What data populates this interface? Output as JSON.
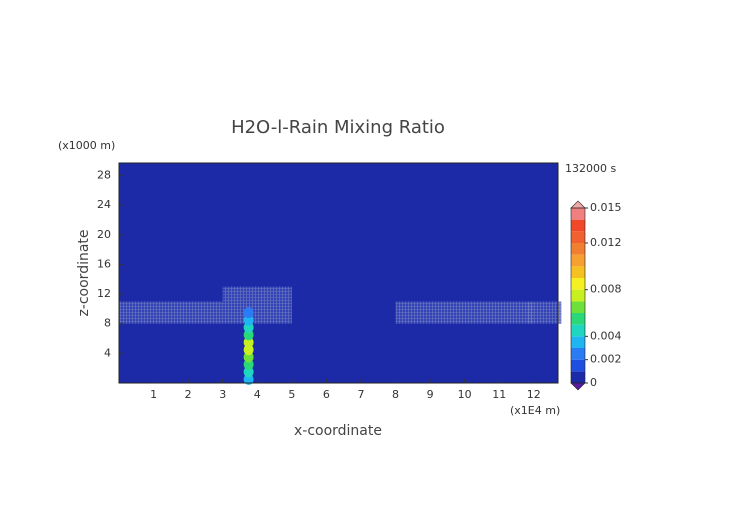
{
  "chart_data": {
    "type": "heatmap",
    "title": "H2O-l-Rain Mixing Ratio",
    "x_label": "x-coordinate",
    "y_label": "z-coordinate",
    "x_unit": "(x1E4 m)",
    "y_unit": "(x1000 m)",
    "time_label": "132000 s",
    "xlim": [
      0,
      12.7
    ],
    "ylim": [
      0,
      29.7
    ],
    "xticks": [
      1,
      2,
      3,
      4,
      5,
      6,
      7,
      8,
      9,
      10,
      11,
      12
    ],
    "yticks": [
      4,
      8,
      12,
      16,
      20,
      24,
      28
    ],
    "clim": [
      0,
      0.015
    ],
    "cticks": [
      0,
      0.002,
      0.004,
      0.008,
      0.012,
      0.015
    ],
    "levels": [
      0,
      0.001,
      0.002,
      0.003,
      0.004,
      0.005,
      0.006,
      0.007,
      0.008,
      0.009,
      0.01,
      0.011,
      0.012,
      0.013,
      0.014,
      0.015
    ],
    "colors": [
      "#1c2aa8",
      "#1f4fe0",
      "#2a7cf5",
      "#1fb5f0",
      "#1fd6c0",
      "#2ad87a",
      "#6ee03a",
      "#c8f020",
      "#f5f020",
      "#f5c020",
      "#f5a030",
      "#f08030",
      "#f06030",
      "#f04828",
      "#f08080"
    ],
    "under_color": "#5a1aa0",
    "over_color": "#f0a8a8",
    "rain": {
      "x": [
        3.75,
        3.75,
        3.75,
        3.75,
        3.75,
        3.75,
        3.75,
        3.75,
        3.75,
        3.75
      ],
      "y": [
        0.5,
        1.5,
        2.5,
        3.5,
        4.5,
        5.5,
        6.5,
        7.5,
        8.5,
        9.5
      ],
      "values": [
        0.003,
        0.004,
        0.005,
        0.006,
        0.0075,
        0.0075,
        0.005,
        0.004,
        0.003,
        0.002
      ]
    },
    "cloud": {
      "x": [
        0.5,
        1.5,
        2.5,
        3.5,
        4.5,
        0.5,
        1.5,
        2.5,
        3.5,
        4.5,
        0.5,
        1.5,
        2.5,
        3.5,
        4.5,
        3.5,
        4.5,
        3.5,
        4.5,
        8.5,
        9.5,
        10.5,
        11.5,
        12.3,
        8.5,
        9.5,
        10.5,
        11.5,
        12.3,
        8.5,
        9.5,
        10.5,
        11.5,
        12.3
      ],
      "y": [
        8.5,
        8.5,
        8.5,
        8.5,
        8.5,
        9.5,
        9.5,
        9.5,
        9.5,
        9.5,
        10.5,
        10.5,
        10.5,
        10.5,
        10.5,
        11.5,
        11.5,
        12.5,
        12.5,
        8.5,
        8.5,
        8.5,
        8.5,
        8.5,
        9.5,
        9.5,
        9.5,
        9.5,
        9.5,
        10.5,
        10.5,
        10.5,
        10.5,
        10.5
      ],
      "values": [
        0.0005,
        0.0005,
        0.0005,
        0.0005,
        0.0005,
        0.0005,
        0.0005,
        0.0005,
        0.0005,
        0.0005,
        0.0005,
        0.0005,
        0.0005,
        0.0005,
        0.0005,
        0.0005,
        0.0005,
        0.0005,
        0.0005,
        0.0005,
        0.0005,
        0.0005,
        0.0005,
        0.0005,
        0.0005,
        0.0005,
        0.0005,
        0.0005,
        0.0005,
        0.0005,
        0.0005,
        0.0005,
        0.0005,
        0.0005
      ]
    }
  }
}
